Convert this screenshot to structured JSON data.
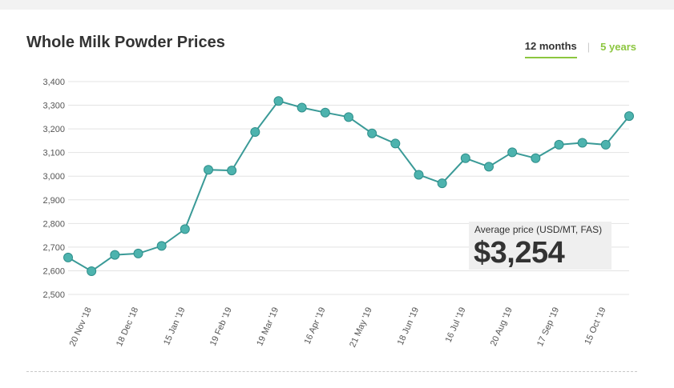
{
  "page": {
    "title": "Whole Milk Powder Prices",
    "tabs": [
      {
        "label": "12 months",
        "active": true
      },
      {
        "label": "5 years",
        "active": false
      }
    ]
  },
  "summary": {
    "label": "Average price (USD/MT, FAS)",
    "value": "$3,254"
  },
  "colors": {
    "line": "#3a9a97",
    "point_fill": "#4db3ae",
    "accent": "#8cc63f",
    "grid": "#e3e3e3"
  },
  "chart_data": {
    "type": "line",
    "ylim": [
      2500,
      3400
    ],
    "yticks": [
      2500,
      2600,
      2700,
      2800,
      2900,
      3000,
      3100,
      3200,
      3300,
      3400
    ],
    "ytick_labels": [
      "2,500",
      "2,600",
      "2,700",
      "2,800",
      "2,900",
      "3,000",
      "3,100",
      "3,200",
      "3,300",
      "3,400"
    ],
    "xtick_labels": [
      "20 Nov '18",
      "18 Dec '18",
      "15 Jan '19",
      "19 Feb '19",
      "19 Mar '19",
      "16 Apr '19",
      "21 May '19",
      "18 Jun '19",
      "16 Jul '19",
      "20 Aug '19",
      "17 Sep '19",
      "15 Oct '19"
    ],
    "grid": true,
    "series": [
      {
        "values": [
          2656,
          2598,
          2667,
          2673,
          2705,
          2776,
          3027,
          3024,
          3187,
          3318,
          3290,
          3269,
          3250,
          3181,
          3138,
          3006,
          2970,
          3076,
          3040,
          3101,
          3076,
          3133,
          3141,
          3133,
          3254
        ]
      }
    ]
  }
}
